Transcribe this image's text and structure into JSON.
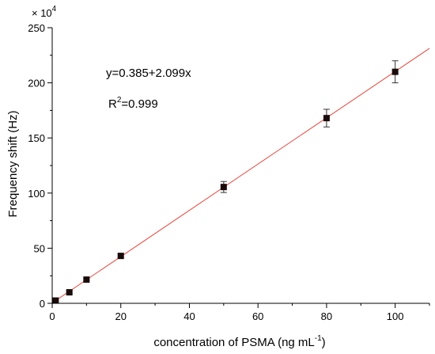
{
  "chart_data": {
    "type": "scatter",
    "xlabel": "concentration of PSMA (ng mL",
    "xlabel_sup": "-1",
    "xlabel_close": ")",
    "ylabel": "Frequency shift (Hz)",
    "y_multiplier": "× 10",
    "y_multiplier_exp": "4",
    "xlim": [
      0,
      110
    ],
    "ylim": [
      0,
      250
    ],
    "x_ticks": [
      0,
      20,
      40,
      60,
      80,
      100
    ],
    "y_ticks": [
      0,
      50,
      100,
      150,
      200,
      250
    ],
    "grid": false,
    "series": [
      {
        "x": [
          1,
          5,
          10,
          20,
          50,
          80,
          100
        ],
        "y": [
          2.5,
          10,
          21.5,
          43,
          105.5,
          168,
          210
        ],
        "yerr": [
          0.5,
          1,
          1,
          1.5,
          5,
          8,
          10
        ],
        "marker": "square",
        "color": "#1a0a0a"
      }
    ],
    "fit": {
      "intercept": 0.385,
      "slope": 2.099,
      "x_range": [
        0,
        110
      ],
      "color": "#e8453c",
      "equation": "y=0.385+2.099x",
      "r2_prefix": "R",
      "r2_sup": "2",
      "r2_value": "=0.999"
    }
  }
}
